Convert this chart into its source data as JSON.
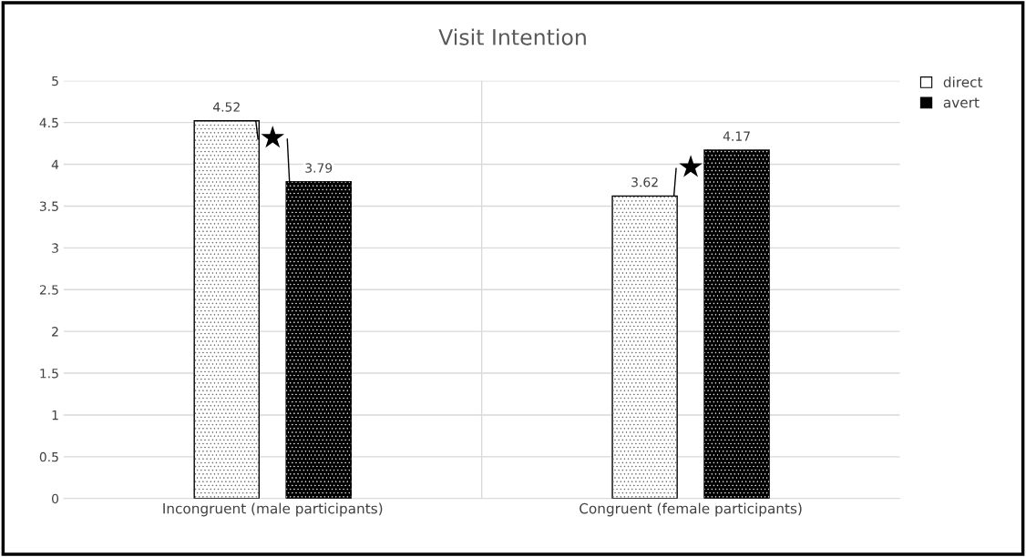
{
  "chart_data": {
    "type": "bar",
    "title": "Visit Intention",
    "categories": [
      "Incongruent (male participants)",
      "Congruent (female participants)"
    ],
    "series": [
      {
        "name": "direct",
        "color": "#ffffff",
        "values": [
          4.52,
          3.62
        ]
      },
      {
        "name": "avert",
        "color": "#000000",
        "values": [
          3.79,
          4.17
        ]
      }
    ],
    "ylim": [
      0,
      5
    ],
    "yticks": [
      0,
      0.5,
      1,
      1.5,
      2,
      2.5,
      3,
      3.5,
      4,
      4.5,
      5
    ],
    "grid": "y",
    "legend": "top right",
    "data_labels": true,
    "annotations": [
      "★",
      "★"
    ]
  }
}
